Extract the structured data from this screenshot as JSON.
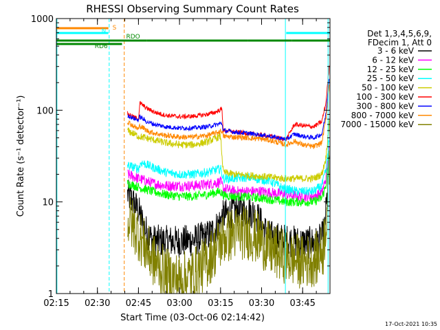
{
  "chart_data": {
    "type": "line",
    "title": "RHESSI Observing Summary Count Rates",
    "xlabel": "Start Time (03-Oct-06 02:14:42)",
    "ylabel": "Count Rate (s⁻¹ detector⁻¹)",
    "xlim_minutes": [
      0,
      100
    ],
    "ylim": [
      1,
      1000
    ],
    "yscale": "log",
    "x_ticks": [
      {
        "label": "02:15",
        "min": 0
      },
      {
        "label": "02:30",
        "min": 15
      },
      {
        "label": "02:45",
        "min": 30
      },
      {
        "label": "03:00",
        "min": 45
      },
      {
        "label": "03:15",
        "min": 60
      },
      {
        "label": "03:30",
        "min": 75
      },
      {
        "label": "03:45",
        "min": 90
      }
    ],
    "y_ticks": [
      {
        "label": "1",
        "value": 1
      },
      {
        "label": "10",
        "value": 10
      },
      {
        "label": "100",
        "value": 100
      },
      {
        "label": "1000",
        "value": 1000
      }
    ],
    "legend_header": [
      "Det 1,3,4,5,6,9,",
      "FDecim 1, Att 0"
    ],
    "legend_position": "right",
    "timestamp": "17-Oct-2021 10:35",
    "flags": [
      {
        "label": "S",
        "color": "#ff8800",
        "segments": [
          [
            0,
            19
          ]
        ]
      },
      {
        "label": "N",
        "color": "#00ffff",
        "segments": [
          [
            0,
            19
          ],
          [
            84,
            100
          ]
        ]
      },
      {
        "label": "RDO",
        "color": "#008800",
        "segments": [
          [
            0,
            33
          ],
          [
            33,
            70
          ],
          [
            70,
            86
          ],
          [
            86,
            100
          ]
        ]
      },
      {
        "label": "RD6",
        "color": "#008800",
        "segments": [
          [
            0,
            1.5
          ],
          [
            1.5,
            24
          ]
        ]
      }
    ],
    "vertical_markers": [
      {
        "min": 19.3,
        "color": "#00ffff",
        "style": "dashed"
      },
      {
        "min": 24.8,
        "color": "#ff8800",
        "style": "dashed"
      },
      {
        "min": 83.7,
        "color": "#00ffff",
        "style": "solid"
      },
      {
        "min": 99.3,
        "color": "#00ffff",
        "style": "solid"
      },
      {
        "min": 0.2,
        "color": "#00ffff",
        "style": "solid"
      }
    ],
    "series": [
      {
        "name": "3 - 6 keV",
        "color": "#000000",
        "noise": 0.18,
        "values": [
          [
            26.0,
            12
          ],
          [
            28.0,
            10
          ],
          [
            30.0,
            8
          ],
          [
            32.5,
            5
          ],
          [
            35.0,
            3.8
          ],
          [
            40.0,
            3.7
          ],
          [
            45.0,
            3.7
          ],
          [
            50.0,
            3.8
          ],
          [
            55.0,
            4.2
          ],
          [
            58.0,
            5
          ],
          [
            61.0,
            7
          ],
          [
            65.0,
            8
          ],
          [
            70.0,
            8
          ],
          [
            72.0,
            7.6
          ],
          [
            74.0,
            6.5
          ],
          [
            76.0,
            5
          ],
          [
            78.0,
            4.2
          ],
          [
            84.0,
            3.8
          ],
          [
            90.0,
            3.6
          ],
          [
            95.0,
            3.6
          ],
          [
            97.0,
            4
          ],
          [
            98.0,
            5
          ],
          [
            99.0,
            12
          ],
          [
            99.8,
            40
          ]
        ]
      },
      {
        "name": "6 - 12 keV",
        "color": "#ff00ff",
        "noise": 0.06,
        "values": [
          [
            26.0,
            20
          ],
          [
            30.0,
            18
          ],
          [
            35.0,
            16
          ],
          [
            40.0,
            15
          ],
          [
            45.0,
            15
          ],
          [
            50.0,
            15
          ],
          [
            55.0,
            15.5
          ],
          [
            60.0,
            16.5
          ],
          [
            61.0,
            14
          ],
          [
            65.0,
            13
          ],
          [
            70.0,
            13
          ],
          [
            75.0,
            13
          ],
          [
            84.0,
            12
          ],
          [
            88.0,
            11.5
          ],
          [
            94.0,
            11.5
          ],
          [
            97.0,
            12.5
          ],
          [
            98.5,
            18
          ],
          [
            99.8,
            40
          ]
        ]
      },
      {
        "name": "12 - 25 keV",
        "color": "#00ff00",
        "noise": 0.05,
        "values": [
          [
            26.0,
            16
          ],
          [
            30.0,
            14.5
          ],
          [
            35.0,
            13
          ],
          [
            40.0,
            12
          ],
          [
            45.0,
            11.5
          ],
          [
            50.0,
            11.5
          ],
          [
            55.0,
            12
          ],
          [
            60.0,
            13
          ],
          [
            61.0,
            11.8
          ],
          [
            65.0,
            11.5
          ],
          [
            70.0,
            11.3
          ],
          [
            75.0,
            11
          ],
          [
            84.0,
            10
          ],
          [
            88.0,
            10
          ],
          [
            94.0,
            10
          ],
          [
            97.0,
            11
          ],
          [
            98.5,
            15
          ],
          [
            99.8,
            35
          ]
        ]
      },
      {
        "name": "25 - 50 keV",
        "color": "#00ffff",
        "noise": 0.05,
        "values": [
          [
            26.0,
            25
          ],
          [
            30.0,
            23
          ],
          [
            31.0,
            27
          ],
          [
            35.0,
            24
          ],
          [
            40.0,
            21
          ],
          [
            45.0,
            20
          ],
          [
            50.0,
            20
          ],
          [
            55.0,
            21
          ],
          [
            60.0,
            23
          ],
          [
            61.0,
            18
          ],
          [
            65.0,
            18
          ],
          [
            70.0,
            18.5
          ],
          [
            75.0,
            17.5
          ],
          [
            78.0,
            17
          ],
          [
            83.0,
            14
          ],
          [
            88.0,
            13
          ],
          [
            94.0,
            13
          ],
          [
            97.0,
            15
          ],
          [
            98.5,
            22
          ],
          [
            99.8,
            50
          ]
        ]
      },
      {
        "name": "50 - 100 keV",
        "color": "#cccc00",
        "noise": 0.04,
        "values": [
          [
            26.0,
            60
          ],
          [
            30.0,
            52
          ],
          [
            35.0,
            48
          ],
          [
            40.0,
            44
          ],
          [
            45.0,
            42
          ],
          [
            50.0,
            42
          ],
          [
            55.0,
            45
          ],
          [
            60.0,
            52
          ],
          [
            61.0,
            21
          ],
          [
            65.0,
            20
          ],
          [
            70.0,
            19.5
          ],
          [
            75.0,
            19
          ],
          [
            83.0,
            18
          ],
          [
            88.0,
            18
          ],
          [
            94.0,
            18
          ],
          [
            97.0,
            20
          ],
          [
            98.5,
            30
          ],
          [
            99.8,
            80
          ]
        ]
      },
      {
        "name": "100 - 300 keV",
        "color": "#ff0000",
        "noise": 0.025,
        "values": [
          [
            26.0,
            92
          ],
          [
            28.0,
            85
          ],
          [
            30.0,
            80
          ],
          [
            30.5,
            120
          ],
          [
            33.0,
            105
          ],
          [
            36.0,
            95
          ],
          [
            40.0,
            88
          ],
          [
            45.0,
            85
          ],
          [
            50.0,
            86
          ],
          [
            55.0,
            90
          ],
          [
            58.0,
            95
          ],
          [
            60.5,
            103
          ],
          [
            61.0,
            60
          ],
          [
            65.0,
            58
          ],
          [
            70.0,
            56
          ],
          [
            74.0,
            54
          ],
          [
            78.0,
            52
          ],
          [
            84.0,
            48
          ],
          [
            87.0,
            70
          ],
          [
            90.0,
            68
          ],
          [
            94.0,
            66
          ],
          [
            97.0,
            75
          ],
          [
            98.5,
            120
          ],
          [
            99.8,
            320
          ]
        ]
      },
      {
        "name": "300 - 800 keV",
        "color": "#0000ff",
        "noise": 0.025,
        "values": [
          [
            26.0,
            88
          ],
          [
            28.0,
            82
          ],
          [
            30.0,
            78
          ],
          [
            30.5,
            85
          ],
          [
            33.0,
            75
          ],
          [
            36.0,
            70
          ],
          [
            40.0,
            66
          ],
          [
            45.0,
            64
          ],
          [
            50.0,
            64
          ],
          [
            55.0,
            66
          ],
          [
            58.0,
            69
          ],
          [
            60.5,
            72
          ],
          [
            61.0,
            60
          ],
          [
            65.0,
            58
          ],
          [
            70.0,
            56
          ],
          [
            74.0,
            54
          ],
          [
            78.0,
            52
          ],
          [
            84.0,
            48
          ],
          [
            87.0,
            55
          ],
          [
            90.0,
            52
          ],
          [
            94.0,
            50
          ],
          [
            97.0,
            55
          ],
          [
            98.5,
            90
          ],
          [
            99.8,
            250
          ]
        ]
      },
      {
        "name": "800 - 7000 keV",
        "color": "#ff8800",
        "noise": 0.03,
        "values": [
          [
            26.0,
            75
          ],
          [
            28.0,
            68
          ],
          [
            30.0,
            62
          ],
          [
            30.5,
            68
          ],
          [
            33.0,
            60
          ],
          [
            36.0,
            56
          ],
          [
            40.0,
            53
          ],
          [
            45.0,
            51
          ],
          [
            50.0,
            51
          ],
          [
            55.0,
            53
          ],
          [
            58.0,
            56
          ],
          [
            60.5,
            60
          ],
          [
            61.0,
            52
          ],
          [
            65.0,
            51
          ],
          [
            70.0,
            50
          ],
          [
            74.0,
            49
          ],
          [
            78.0,
            47
          ],
          [
            84.0,
            42
          ],
          [
            87.0,
            46
          ],
          [
            90.0,
            42
          ],
          [
            94.0,
            40
          ],
          [
            97.0,
            44
          ],
          [
            98.5,
            80
          ],
          [
            99.8,
            200
          ]
        ]
      },
      {
        "name": "7000 - 15000 keV",
        "color": "#808000",
        "noise": 0.3,
        "values": [
          [
            26.0,
            6.5
          ],
          [
            28.0,
            5.5
          ],
          [
            30.0,
            4.5
          ],
          [
            33.0,
            3
          ],
          [
            36.0,
            2.2
          ],
          [
            40.0,
            1.6
          ],
          [
            45.0,
            1.4
          ],
          [
            50.0,
            1.6
          ],
          [
            55.0,
            2.2
          ],
          [
            58.0,
            3
          ],
          [
            61.0,
            4
          ],
          [
            65.0,
            4.6
          ],
          [
            70.0,
            4.6
          ],
          [
            74.0,
            4
          ],
          [
            78.0,
            3
          ],
          [
            84.0,
            2.5
          ],
          [
            90.0,
            2.2
          ],
          [
            95.0,
            2.4
          ],
          [
            97.5,
            3
          ],
          [
            98.5,
            6
          ],
          [
            99.8,
            25
          ]
        ]
      }
    ]
  }
}
